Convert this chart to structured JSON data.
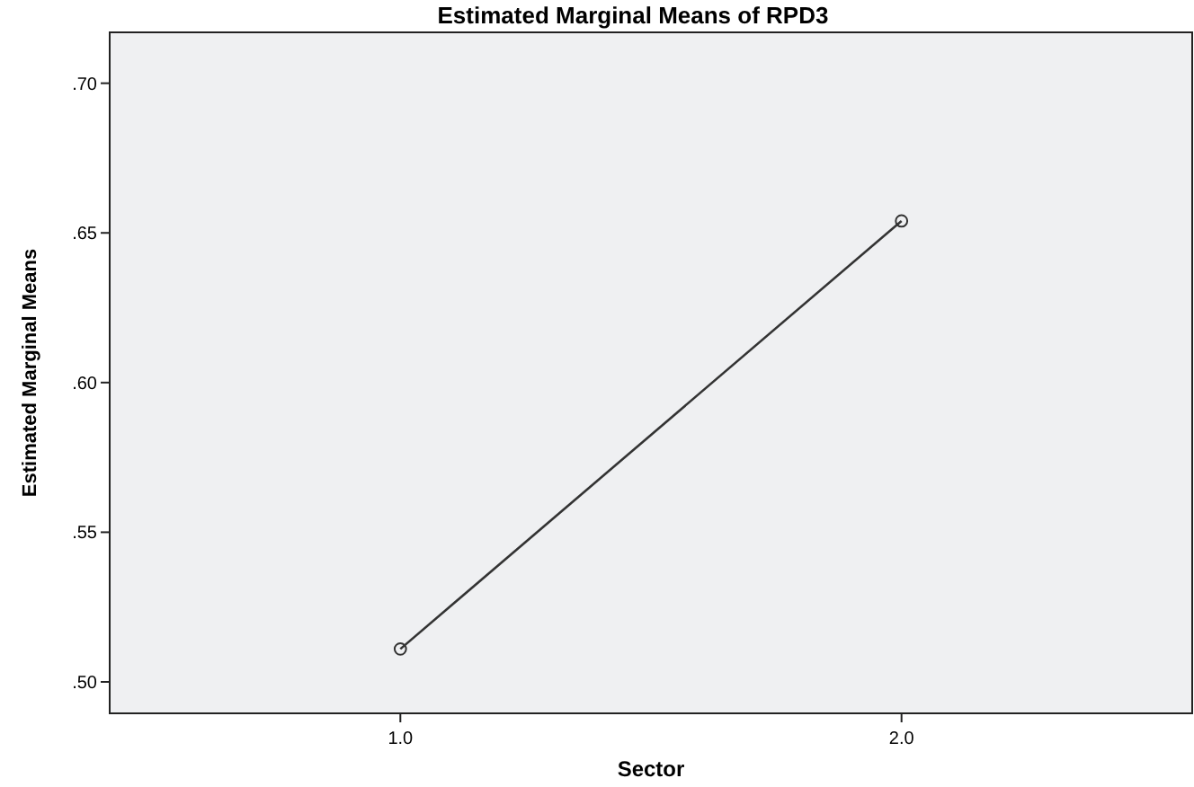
{
  "chart_data": {
    "type": "line",
    "title": "Estimated Marginal Means of RPD3",
    "xlabel": "Sector",
    "ylabel": "Estimated Marginal Means",
    "categories": [
      "1.0",
      "2.0"
    ],
    "series": [
      {
        "color": "#333333",
        "values": [
          0.511,
          0.654
        ]
      }
    ],
    "ylim": [
      0.4895,
      0.717
    ],
    "yticks": [
      {
        "value": 0.5,
        "label": ".50"
      },
      {
        "value": 0.55,
        "label": ".55"
      },
      {
        "value": 0.6,
        "label": ".60"
      },
      {
        "value": 0.65,
        "label": ".65"
      },
      {
        "value": 0.7,
        "label": ".70"
      }
    ],
    "grid": false,
    "marker": "circle",
    "line_style": "solid"
  }
}
